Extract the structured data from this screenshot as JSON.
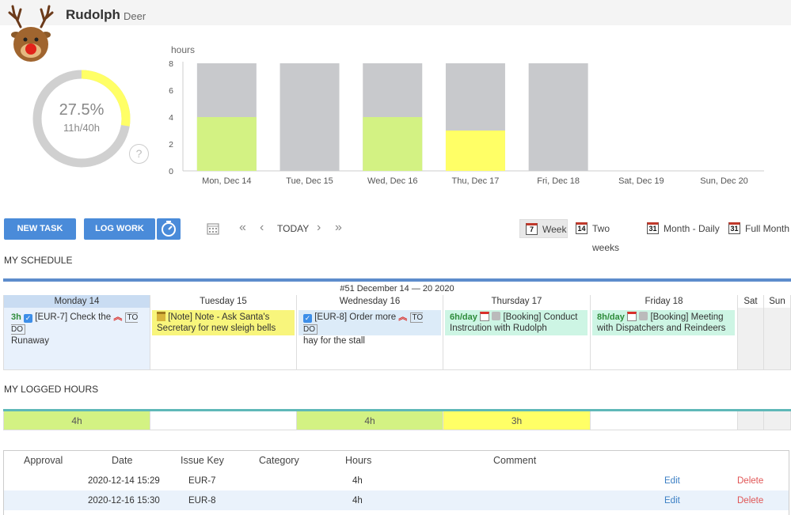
{
  "header": {
    "name": "Rudolph",
    "role": "Deer"
  },
  "donut": {
    "percent_label": "27.5%",
    "hours_label": "11h/40h",
    "fraction": 0.275,
    "help": "?",
    "fill_color": "#ffff66",
    "track_color": "#d0d0d0"
  },
  "chart_data": {
    "type": "bar",
    "ylabel": "hours",
    "ylim": [
      0,
      8
    ],
    "yticks": [
      "0",
      "2",
      "4",
      "6",
      "8"
    ],
    "categories": [
      "Mon, Dec 14",
      "Tue, Dec 15",
      "Wed, Dec 16",
      "Thu, Dec 17",
      "Fri, Dec 18",
      "Sat, Dec 19",
      "Sun, Dec 20"
    ],
    "capacity": [
      8,
      8,
      8,
      8,
      8,
      0,
      0
    ],
    "logged": [
      4,
      0,
      4,
      3,
      0,
      0,
      0
    ],
    "logged_colors": [
      "#d3f283",
      "#d3f283",
      "#d3f283",
      "#ffff66",
      "#d3f283",
      "#d3f283",
      "#d3f283"
    ],
    "capacity_color": "#c8c9cc"
  },
  "toolbar": {
    "new_task": "NEW TASK",
    "log_work": "LOG WORK",
    "today": "TODAY",
    "views": [
      {
        "label": "Week",
        "icon": "7"
      },
      {
        "label": "Two weeks",
        "icon": "14"
      },
      {
        "label": "Month - Daily",
        "icon": "31"
      },
      {
        "label": "Full Month",
        "icon": "31"
      }
    ]
  },
  "schedule": {
    "title": "MY SCHEDULE",
    "week": "#51 December 14 — 20 2020",
    "days": [
      "Monday 14",
      "Tuesday 15",
      "Wednesday 16",
      "Thursday 17",
      "Friday 18",
      "Sat",
      "Sun"
    ],
    "tasks": {
      "mon": {
        "hours": "3h",
        "text1": "[EUR-7] Check the",
        "text2": "Runaway",
        "status": "TO DO"
      },
      "tue": {
        "text1": "[Note] Note - Ask Santa's",
        "text2": "Secretary for new sleigh bells"
      },
      "wed": {
        "text1": "[EUR-8] Order more",
        "text2": "hay for the stall",
        "status": "TO DO"
      },
      "thu": {
        "hours": "6h/day",
        "text1": "[Booking] Conduct",
        "text2": "Instrcution with Rudolph"
      },
      "fri": {
        "hours": "8h/day",
        "text1": "[Booking] Meeting",
        "text2": "with Dispatchers and Reindeers"
      }
    }
  },
  "logged": {
    "title": "MY LOGGED HOURS",
    "cells": [
      "4h",
      "",
      "4h",
      "3h",
      "",
      "",
      ""
    ]
  },
  "table": {
    "headers": [
      "Approval",
      "Date",
      "Issue Key",
      "Category",
      "Hours",
      "Comment"
    ],
    "rows": [
      {
        "approval": "",
        "date": "2020-12-14 15:29",
        "key": "EUR-7",
        "category": "",
        "hours": "4h",
        "comment": "",
        "edit": "Edit",
        "delete": "Delete"
      },
      {
        "approval": "",
        "date": "2020-12-16 15:30",
        "key": "EUR-8",
        "category": "",
        "hours": "4h",
        "comment": "",
        "edit": "Edit",
        "delete": "Delete"
      }
    ]
  }
}
